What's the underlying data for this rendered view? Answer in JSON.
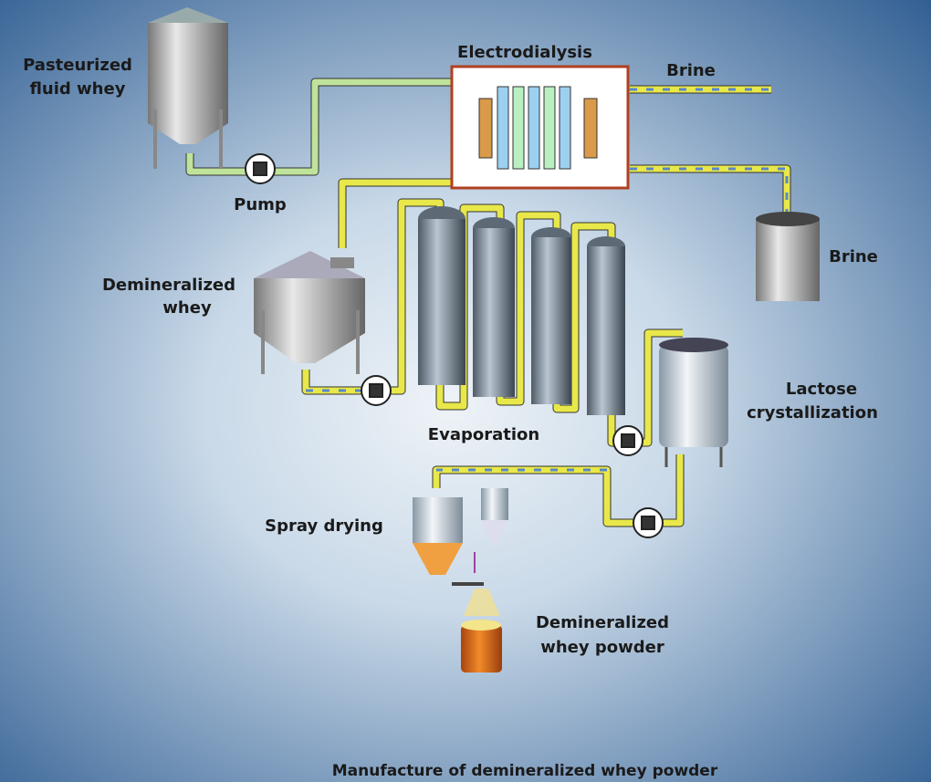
{
  "title": "Manufacture of demineralized whey powder",
  "nodes": [
    {
      "lines": [
        "Pasteurized",
        "fluid whey"
      ]
    },
    {
      "lines": [
        "Pump"
      ]
    },
    {
      "lines": [
        "Electrodialysis"
      ]
    },
    {
      "lines": [
        "Brine"
      ]
    },
    {
      "lines": [
        "Brine"
      ]
    },
    {
      "lines": [
        "Demineralized",
        "whey"
      ]
    },
    {
      "lines": [
        "Evaporation"
      ]
    },
    {
      "lines": [
        "Lactose",
        "crystallization"
      ]
    },
    {
      "lines": [
        "Spray drying"
      ]
    },
    {
      "lines": [
        "Demineralized",
        "whey powder"
      ]
    }
  ]
}
